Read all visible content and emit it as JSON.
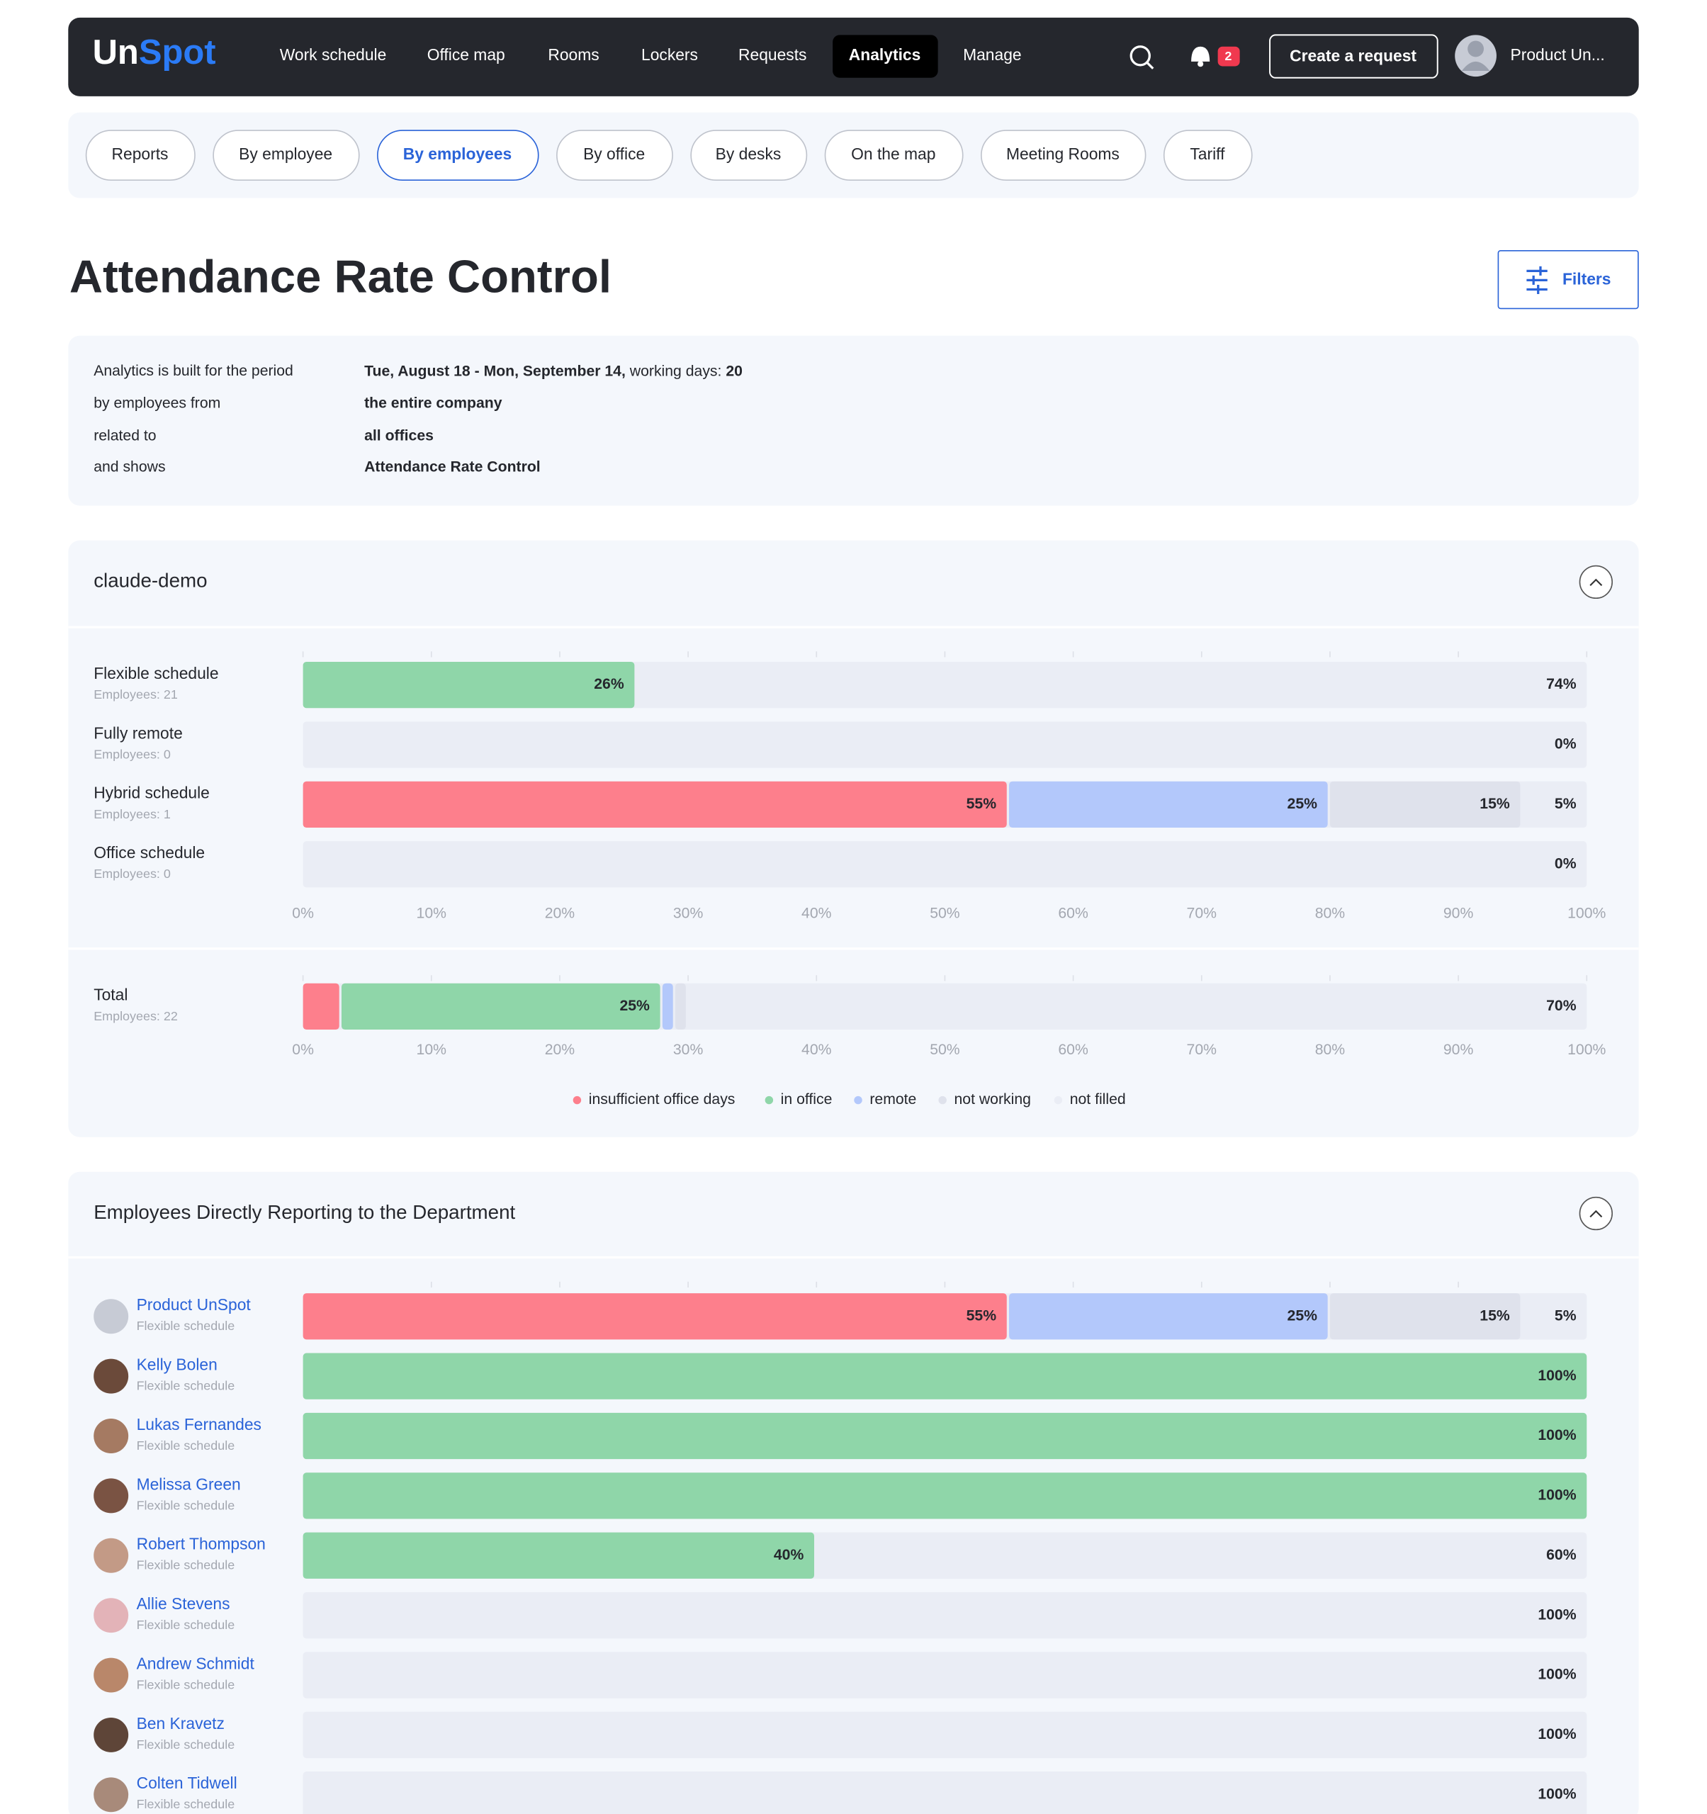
{
  "nav": {
    "logo_un": "Un",
    "logo_spot": "Spot",
    "items": [
      "Work schedule",
      "Office map",
      "Rooms",
      "Lockers",
      "Requests",
      "Analytics",
      "Manage"
    ],
    "notifications": 2,
    "create_button": "Create a request",
    "user": "Product Un..."
  },
  "tabs": [
    "Reports",
    "By employee",
    "By employees",
    "By office",
    "By desks",
    "On the map",
    "Meeting Rooms",
    "Tariff"
  ],
  "page_title": "Attendance Rate Control",
  "filters_button": "Filters",
  "summary": {
    "period_label": "Analytics is built for the period",
    "period": "Tue, August 18 - Mon, September 14,",
    "working_days_label": "working days:",
    "working_days": 20,
    "employees_from_label": "by employees from",
    "employees_from": "the entire company",
    "related_label": "related to",
    "related": "all offices",
    "shows_label": "and shows",
    "shows": "Attendance Rate Control"
  },
  "chart_data": [
    {
      "type": "stacked-barh",
      "title": "claude-demo",
      "categories": [
        "Flexible schedule",
        "Fully remote",
        "Hybrid schedule",
        "Office schedule"
      ],
      "category_notes": [
        "Employees: 21",
        "Employees: 0",
        "Employees: 1",
        "Employees: 0"
      ],
      "series": [
        {
          "color": "#fd7f8c",
          "values": [
            null,
            null,
            55,
            null
          ],
          "value_labels": [
            null,
            null,
            "55%",
            null
          ]
        },
        {
          "color": "#8fd6a9",
          "values": [
            26,
            null,
            null,
            null
          ],
          "value_labels": [
            "26%",
            null,
            null,
            null
          ]
        },
        {
          "color": "#b3c8fb",
          "values": [
            null,
            null,
            25,
            null
          ],
          "value_labels": [
            null,
            null,
            "25%",
            null
          ]
        },
        {
          "color": "#dfe2ec",
          "values": [
            null,
            null,
            15,
            null
          ],
          "value_labels": [
            null,
            null,
            "15%",
            null
          ]
        },
        {
          "color": "#eaedf5",
          "values": [
            74,
            0,
            5,
            0
          ],
          "value_labels": [
            "74%",
            "0%",
            "5%",
            "0%"
          ]
        }
      ],
      "xlim": [
        0,
        100
      ],
      "xticks": [
        {
          "value": 0,
          "label": "0%"
        },
        {
          "value": 10,
          "label": "10%"
        },
        {
          "value": 20,
          "label": "20%"
        },
        {
          "value": 30,
          "label": "30%"
        },
        {
          "value": 40,
          "label": "40%"
        },
        {
          "value": 50,
          "label": "50%"
        },
        {
          "value": 60,
          "label": "60%"
        },
        {
          "value": 70,
          "label": "70%"
        },
        {
          "value": 80,
          "label": "80%"
        },
        {
          "value": 90,
          "label": "90%"
        },
        {
          "value": 100,
          "label": "100%"
        }
      ]
    },
    {
      "type": "stacked-barh",
      "categories": [
        "Total"
      ],
      "category_notes": [
        "Employees: 22"
      ],
      "series": [
        {
          "name": "insufficient office days",
          "color": "#fd7f8c",
          "values": [
            3
          ],
          "value_labels": [
            null
          ]
        },
        {
          "name": "in office",
          "color": "#8fd6a9",
          "values": [
            25
          ],
          "value_labels": [
            "25%"
          ]
        },
        {
          "name": "remote",
          "color": "#b3c8fb",
          "values": [
            1
          ],
          "value_labels": [
            null
          ]
        },
        {
          "name": "not working",
          "color": "#dfe2ec",
          "values": [
            1
          ],
          "value_labels": [
            null
          ]
        },
        {
          "name": "not filled",
          "color": "#eaedf5",
          "values": [
            70
          ],
          "value_labels": [
            "70%"
          ]
        }
      ],
      "xlim": [
        0,
        100
      ],
      "xticks": [
        {
          "value": 0,
          "label": "0%"
        },
        {
          "value": 10,
          "label": "10%"
        },
        {
          "value": 20,
          "label": "20%"
        },
        {
          "value": 30,
          "label": "30%"
        },
        {
          "value": 40,
          "label": "40%"
        },
        {
          "value": 50,
          "label": "50%"
        },
        {
          "value": 60,
          "label": "60%"
        },
        {
          "value": 70,
          "label": "70%"
        },
        {
          "value": 80,
          "label": "80%"
        },
        {
          "value": 90,
          "label": "90%"
        },
        {
          "value": 100,
          "label": "100%"
        }
      ]
    },
    {
      "type": "stacked-barh",
      "title": "Employees Directly Reporting to the Department",
      "categories": [
        "Product UnSpot",
        "Kelly Bolen",
        "Lukas Fernandes",
        "Melissa Green",
        "Robert Thompson",
        "Allie Stevens",
        "Andrew Schmidt",
        "Ben Kravetz",
        "Colten Tidwell"
      ],
      "category_notes": [
        "Flexible schedule",
        "Flexible schedule",
        "Flexible schedule",
        "Flexible schedule",
        "Flexible schedule",
        "Flexible schedule",
        "Flexible schedule",
        "Flexible schedule",
        "Flexible schedule"
      ],
      "series": [
        {
          "color": "#fd7f8c",
          "values": [
            55,
            null,
            null,
            null,
            null,
            null,
            null,
            null,
            null
          ],
          "value_labels": [
            "55%",
            null,
            null,
            null,
            null,
            null,
            null,
            null,
            null
          ]
        },
        {
          "color": "#8fd6a9",
          "values": [
            null,
            100,
            100,
            100,
            40,
            null,
            null,
            null,
            null
          ],
          "value_labels": [
            null,
            "100%",
            "100%",
            "100%",
            "40%",
            null,
            null,
            null,
            null
          ]
        },
        {
          "color": "#b3c8fb",
          "values": [
            25,
            null,
            null,
            null,
            null,
            null,
            null,
            null,
            null
          ],
          "value_labels": [
            "25%",
            null,
            null,
            null,
            null,
            null,
            null,
            null,
            null
          ]
        },
        {
          "color": "#dfe2ec",
          "values": [
            15,
            null,
            null,
            null,
            null,
            null,
            null,
            null,
            null
          ],
          "value_labels": [
            "15%",
            null,
            null,
            null,
            null,
            null,
            null,
            null,
            null
          ]
        },
        {
          "color": "#eaedf5",
          "values": [
            5,
            null,
            null,
            null,
            60,
            100,
            100,
            100,
            100
          ],
          "value_labels": [
            "5%",
            null,
            null,
            null,
            "60%",
            "100%",
            "100%",
            "100%",
            "100%"
          ]
        }
      ],
      "xlim": [
        0,
        100
      ],
      "xticks": [
        10,
        20,
        30,
        40,
        50,
        60,
        70,
        80,
        90
      ]
    }
  ]
}
